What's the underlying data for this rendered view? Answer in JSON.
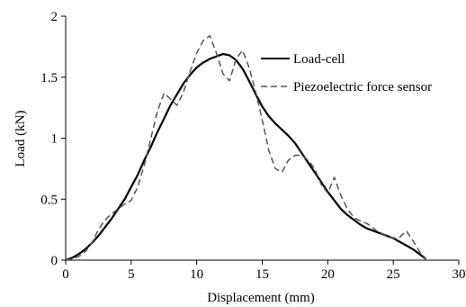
{
  "chart_data": {
    "type": "line",
    "title": "",
    "xlabel": "Displacement  (mm)",
    "ylabel": "Load (kN)",
    "xlim": [
      0,
      30
    ],
    "ylim": [
      0,
      2
    ],
    "xticks": [
      0,
      5,
      10,
      15,
      20,
      25,
      30
    ],
    "xtick_labels": [
      "0",
      "5",
      "10",
      "15",
      "20",
      "25",
      "30"
    ],
    "yticks": [
      0,
      0.5,
      1,
      1.5,
      2
    ],
    "ytick_labels": [
      "0",
      "0.5",
      "1",
      "1.5",
      "2"
    ],
    "grid": false,
    "legend_position": "top-right",
    "series": [
      {
        "name": "Load-cell",
        "color": "#000000",
        "style": "solid",
        "x": [
          0,
          0.5,
          1,
          1.5,
          2,
          2.5,
          3,
          3.5,
          4,
          4.5,
          5,
          5.5,
          6,
          6.5,
          7,
          7.5,
          8,
          8.5,
          9,
          9.5,
          10,
          10.5,
          11,
          11.5,
          12,
          12.5,
          13,
          13.5,
          14,
          14.5,
          15,
          15.5,
          16,
          16.5,
          17,
          17.5,
          18,
          18.5,
          19,
          19.5,
          20,
          20.5,
          21,
          21.5,
          22,
          22.5,
          23,
          23.5,
          24,
          24.5,
          25,
          25.5,
          26,
          26.5,
          27,
          27.5
        ],
        "y": [
          0,
          0.02,
          0.05,
          0.09,
          0.14,
          0.2,
          0.27,
          0.34,
          0.42,
          0.5,
          0.6,
          0.7,
          0.82,
          0.93,
          1.05,
          1.16,
          1.27,
          1.36,
          1.45,
          1.52,
          1.58,
          1.62,
          1.65,
          1.67,
          1.69,
          1.68,
          1.64,
          1.57,
          1.47,
          1.36,
          1.26,
          1.18,
          1.12,
          1.07,
          1.02,
          0.96,
          0.88,
          0.8,
          0.72,
          0.64,
          0.56,
          0.49,
          0.42,
          0.37,
          0.33,
          0.29,
          0.26,
          0.24,
          0.22,
          0.2,
          0.18,
          0.15,
          0.12,
          0.09,
          0.05,
          0.01
        ]
      },
      {
        "name": "Piezoelectric force sensor",
        "color": "#555555",
        "style": "dashed",
        "x": [
          0,
          0.5,
          1,
          1.5,
          2,
          2.5,
          3,
          3.5,
          4,
          4.5,
          5,
          5.5,
          6,
          6.5,
          7,
          7.5,
          8,
          8.5,
          9,
          9.5,
          10,
          10.5,
          11,
          11.5,
          12,
          12.5,
          13,
          13.5,
          14,
          14.5,
          15,
          15.5,
          16,
          16.5,
          17,
          17.5,
          18,
          18.5,
          19,
          19.5,
          20,
          20.5,
          21,
          21.5,
          22,
          22.5,
          23,
          23.5,
          24,
          24.5,
          25,
          25.5,
          26,
          26.5,
          27,
          27.5
        ],
        "y": [
          0,
          0.01,
          0.03,
          0.07,
          0.14,
          0.25,
          0.33,
          0.38,
          0.42,
          0.46,
          0.49,
          0.6,
          0.78,
          1.0,
          1.22,
          1.37,
          1.32,
          1.27,
          1.38,
          1.55,
          1.7,
          1.8,
          1.84,
          1.7,
          1.53,
          1.47,
          1.65,
          1.72,
          1.58,
          1.38,
          1.15,
          0.9,
          0.75,
          0.72,
          0.82,
          0.86,
          0.86,
          0.82,
          0.75,
          0.62,
          0.55,
          0.68,
          0.53,
          0.42,
          0.35,
          0.32,
          0.3,
          0.26,
          0.22,
          0.2,
          0.18,
          0.19,
          0.24,
          0.16,
          0.07,
          0.01
        ]
      }
    ]
  }
}
